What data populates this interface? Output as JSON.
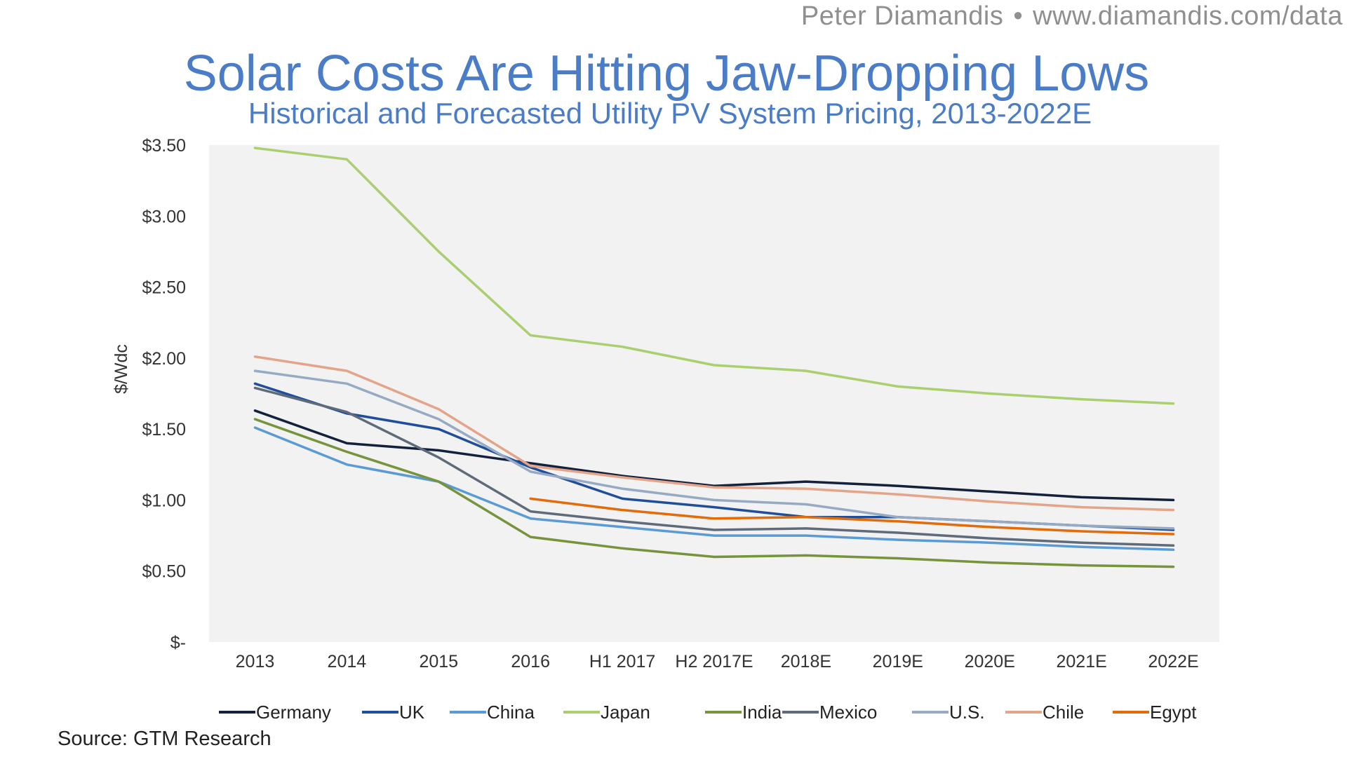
{
  "credit": {
    "name": "Peter Diamandis",
    "separator": "•",
    "url": "www.diamandis.com/data"
  },
  "source": "Source: GTM Research",
  "chart_data": {
    "type": "line",
    "title": "Solar Costs Are Hitting Jaw-Dropping Lows",
    "subtitle": "Historical and Forecasted Utility PV System Pricing, 2013-2022E",
    "xlabel": "",
    "ylabel": "$/Wdc",
    "ylim": [
      0,
      3.5
    ],
    "grid": false,
    "legend_position": "bottom",
    "categories": [
      "2013",
      "2014",
      "2015",
      "2016",
      "H1 2017",
      "H2 2017E",
      "2018E",
      "2019E",
      "2020E",
      "2021E",
      "2022E"
    ],
    "y_ticks": [
      {
        "value": 0,
        "label": "$-"
      },
      {
        "value": 0.5,
        "label": "$0.50"
      },
      {
        "value": 1.0,
        "label": "$1.00"
      },
      {
        "value": 1.5,
        "label": "$1.50"
      },
      {
        "value": 2.0,
        "label": "$2.00"
      },
      {
        "value": 2.5,
        "label": "$2.50"
      },
      {
        "value": 3.0,
        "label": "$3.00"
      },
      {
        "value": 3.5,
        "label": "$3.50"
      }
    ],
    "series": [
      {
        "name": "Germany",
        "color": "#13213c",
        "values": [
          1.63,
          1.4,
          1.35,
          1.26,
          1.17,
          1.1,
          1.13,
          1.1,
          1.06,
          1.02,
          1.0
        ]
      },
      {
        "name": "UK",
        "color": "#1f4e9a",
        "values": [
          1.82,
          1.61,
          1.5,
          1.23,
          1.01,
          0.95,
          0.88,
          0.88,
          0.85,
          0.82,
          0.79
        ]
      },
      {
        "name": "China",
        "color": "#5b9bd5",
        "values": [
          1.51,
          1.25,
          1.13,
          0.87,
          0.81,
          0.75,
          0.75,
          0.72,
          0.7,
          0.67,
          0.65
        ]
      },
      {
        "name": "Japan",
        "color": "#a9cf6e",
        "values": [
          3.48,
          3.4,
          2.75,
          2.16,
          2.08,
          1.95,
          1.91,
          1.8,
          1.75,
          1.71,
          1.68
        ]
      },
      {
        "name": "India",
        "color": "#77933c",
        "values": [
          1.57,
          1.34,
          1.13,
          0.74,
          0.66,
          0.6,
          0.61,
          0.59,
          0.56,
          0.54,
          0.53
        ]
      },
      {
        "name": "Mexico",
        "color": "#5f6b7a",
        "values": [
          1.79,
          1.62,
          1.3,
          0.92,
          0.85,
          0.79,
          0.8,
          0.77,
          0.73,
          0.7,
          0.68
        ]
      },
      {
        "name": "U.S.",
        "color": "#97aac4",
        "values": [
          1.91,
          1.82,
          1.57,
          1.2,
          1.08,
          1.0,
          0.97,
          0.88,
          0.85,
          0.82,
          0.8
        ]
      },
      {
        "name": "Chile",
        "color": "#e3a489",
        "values": [
          2.01,
          1.91,
          1.64,
          1.24,
          1.16,
          1.09,
          1.08,
          1.04,
          0.99,
          0.95,
          0.93
        ]
      },
      {
        "name": "Egypt",
        "color": "#e36c0a",
        "values": [
          null,
          null,
          null,
          1.01,
          0.93,
          0.87,
          0.88,
          0.85,
          0.81,
          0.78,
          0.76
        ]
      }
    ]
  }
}
